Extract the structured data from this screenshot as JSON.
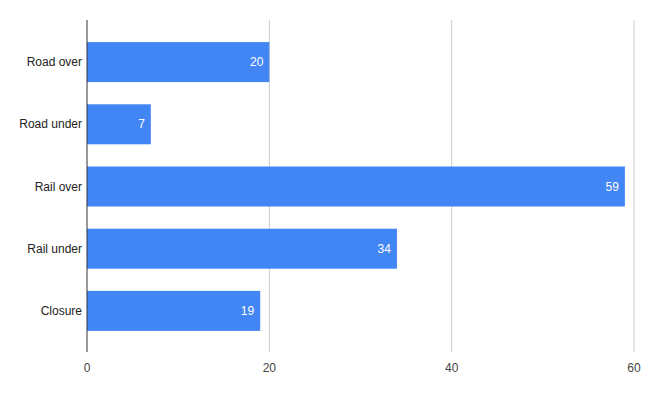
{
  "chart_data": {
    "type": "bar",
    "orientation": "horizontal",
    "categories": [
      "Road over",
      "Road under",
      "Rail over",
      "Rail under",
      "Closure"
    ],
    "values": [
      20,
      7,
      59,
      34,
      19
    ],
    "color": "#4285f4",
    "xlim": [
      0,
      60
    ],
    "xticks": [
      0,
      20,
      40,
      60
    ],
    "grid": true,
    "data_labels": true
  }
}
